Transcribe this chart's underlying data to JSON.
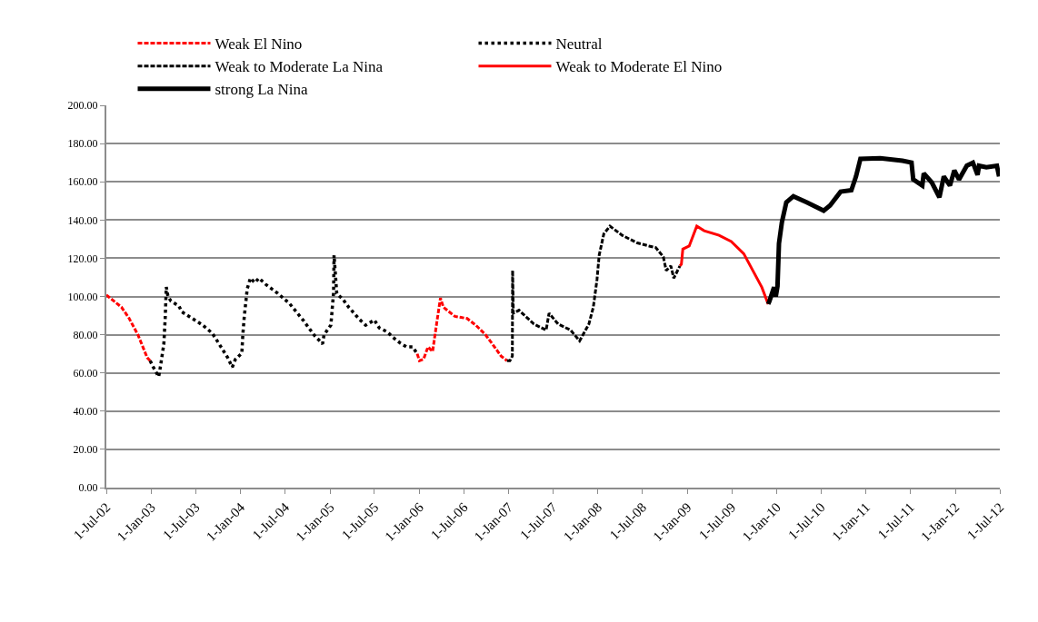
{
  "chart_data": {
    "type": "line",
    "xlim": [
      "2002-07-01",
      "2012-07-01"
    ],
    "xticks": [
      {
        "value": "2002-07-01",
        "label": "1-Jul-02"
      },
      {
        "value": "2003-01-01",
        "label": "1-Jan-03"
      },
      {
        "value": "2003-07-01",
        "label": "1-Jul-03"
      },
      {
        "value": "2004-01-01",
        "label": "1-Jan-04"
      },
      {
        "value": "2004-07-01",
        "label": "1-Jul-04"
      },
      {
        "value": "2005-01-01",
        "label": "1-Jan-05"
      },
      {
        "value": "2005-07-01",
        "label": "1-Jul-05"
      },
      {
        "value": "2006-01-01",
        "label": "1-Jan-06"
      },
      {
        "value": "2006-07-01",
        "label": "1-Jul-06"
      },
      {
        "value": "2007-01-01",
        "label": "1-Jan-07"
      },
      {
        "value": "2007-07-01",
        "label": "1-Jul-07"
      },
      {
        "value": "2008-01-01",
        "label": "1-Jan-08"
      },
      {
        "value": "2008-07-01",
        "label": "1-Jul-08"
      },
      {
        "value": "2009-01-01",
        "label": "1-Jan-09"
      },
      {
        "value": "2009-07-01",
        "label": "1-Jul-09"
      },
      {
        "value": "2010-01-01",
        "label": "1-Jan-10"
      },
      {
        "value": "2010-07-01",
        "label": "1-Jul-10"
      },
      {
        "value": "2011-01-01",
        "label": "1-Jan-11"
      },
      {
        "value": "2011-07-01",
        "label": "1-Jul-11"
      },
      {
        "value": "2012-01-01",
        "label": "1-Jan-12"
      },
      {
        "value": "2012-07-01",
        "label": "1-Jul-12"
      }
    ],
    "ylim": [
      0,
      200
    ],
    "yticks": [
      {
        "value": 0,
        "label": "0.00"
      },
      {
        "value": 20,
        "label": "20.00"
      },
      {
        "value": 40,
        "label": "40.00"
      },
      {
        "value": 60,
        "label": "60.00"
      },
      {
        "value": 80,
        "label": "80.00"
      },
      {
        "value": 100,
        "label": "100.00"
      },
      {
        "value": 120,
        "label": "120.00"
      },
      {
        "value": 140,
        "label": "140.00"
      },
      {
        "value": 160,
        "label": "160.00"
      },
      {
        "value": 180,
        "label": "180.00"
      },
      {
        "value": 200,
        "label": "200.00"
      }
    ],
    "grid": "y",
    "legend": "top",
    "marker": "none",
    "series": [
      {
        "name": "Weak El Nino",
        "color": "#ff0000",
        "line_style": "dashed",
        "x": [
          "2002-07-01",
          "2002-09-01",
          "2002-10-01",
          "2002-11-07",
          "2002-12-15",
          "2002-12-27",
          "2004-06-01",
          "2005-12-23",
          "2006-01-01",
          "2006-01-18",
          "2006-02-05",
          "2006-02-24",
          "2006-03-13",
          "2006-03-28",
          "2006-04-09",
          "2006-05-26",
          "2006-07-15",
          "2006-08-21",
          "2006-09-28",
          "2006-11-04",
          "2006-12-01",
          "2006-12-25"
        ],
        "values": [
          100.8,
          94.4,
          88.8,
          80,
          68,
          66.4,
          null,
          70,
          66.4,
          67.2,
          73.6,
          71.2,
          86.4,
          99.2,
          94.4,
          89.6,
          88.5,
          84.8,
          80,
          73.6,
          68.8,
          66.4
        ]
      },
      {
        "name": "Neutral",
        "color": "#000000",
        "line_style": "dotted",
        "x": [
          "2002-12-27",
          "2003-01-09",
          "2003-01-31",
          "2003-02-06",
          "2003-02-21",
          "2003-02-27",
          "2003-03-03",
          "2003-03-10",
          "2003-03-22",
          "2003-04-24",
          "2003-05-05",
          "2003-07-06",
          "2003-08-01",
          "2003-09-07",
          "2003-10-01",
          "2003-11-09",
          "2003-11-28",
          "2003-12-10",
          "2004-01-06",
          "2004-01-10",
          "2004-01-16",
          "2004-01-28",
          "2004-02-10",
          "2004-02-28",
          "2004-03-16",
          "2004-04-12",
          "2004-06-01",
          "2004-07-19",
          "2004-09-15",
          "2004-10-28",
          "2004-12-01",
          "2004-12-07",
          "2005-01-04",
          "2005-01-15",
          "2005-01-17",
          "2005-01-28",
          "2005-02-23",
          "2005-03-18",
          "2005-05-01",
          "2005-05-26",
          "2005-07-01",
          "2005-07-21",
          "2005-08-21",
          "2005-09-21",
          "2005-10-16",
          "2005-11-10",
          "2005-12-04",
          "2005-12-23"
        ],
        "values": [
          66.4,
          63,
          58,
          62.4,
          75,
          89.6,
          105,
          100,
          97.6,
          95,
          92,
          87,
          84.8,
          80.8,
          76,
          68,
          63,
          67,
          70.4,
          80,
          89.6,
          104,
          109.6,
          107.2,
          109.6,
          106.4,
          101.6,
          96.3,
          87.2,
          79.7,
          75.2,
          80,
          85,
          102,
          121.6,
          101.6,
          98.4,
          94.4,
          88,
          85,
          87.7,
          83.5,
          81.6,
          78,
          75.5,
          73.6,
          73.6,
          70
        ]
      },
      {
        "name": "Weak to Moderate La Nina",
        "color": "#000000",
        "line_style": "dashed",
        "x": [
          "2006-12-25",
          "2007-01-06",
          "2007-01-16",
          "2007-01-17",
          "2007-01-20",
          "2007-02-12",
          "2007-04-14",
          "2007-06-03",
          "2007-06-15",
          "2007-07-22",
          "2007-09-11",
          "2007-10-18",
          "2007-11-25",
          "2007-12-13",
          "2007-12-28",
          "2008-01-06",
          "2008-01-25",
          "2008-02-19",
          "2008-04-09",
          "2008-06-10",
          "2008-07-28",
          "2008-08-24",
          "2008-09-24",
          "2008-10-06",
          "2008-10-25",
          "2008-11-06",
          "2008-12-01"
        ],
        "values": [
          66.4,
          66.4,
          68.8,
          113.6,
          91.2,
          92.8,
          85.6,
          82.4,
          91.2,
          85.6,
          82.4,
          76.8,
          85.6,
          94.4,
          108.8,
          121.6,
          132.8,
          136.8,
          132,
          128,
          126.4,
          125.6,
          120.8,
          113.6,
          116,
          109.6,
          116
        ]
      },
      {
        "name": "Weak to Moderate El Nino",
        "color": "#ff0000",
        "line_style": "solid",
        "x": [
          "2008-12-01",
          "2008-12-07",
          "2008-12-13",
          "2009-01-08",
          "2009-02-08",
          "2009-03-10",
          "2009-05-10",
          "2009-06-29",
          "2009-08-19",
          "2009-09-25",
          "2009-11-01",
          "2009-11-27"
        ],
        "values": [
          116,
          116.8,
          124.8,
          126.4,
          136.8,
          134.4,
          132,
          128.8,
          122.4,
          113.6,
          104.8,
          96
        ]
      },
      {
        "name": "strong La Nina",
        "color": "#000000",
        "line_style": "solid",
        "x": [
          "2009-11-27",
          "2009-12-02",
          "2009-12-21",
          "2009-12-28",
          "2010-01-04",
          "2010-01-10",
          "2010-01-22",
          "2010-02-09",
          "2010-03-10",
          "2010-05-05",
          "2010-07-12",
          "2010-08-07",
          "2010-09-19",
          "2010-11-02",
          "2010-11-21",
          "2010-12-09",
          "2011-02-28",
          "2011-05-30",
          "2011-07-06",
          "2011-07-13",
          "2011-08-19",
          "2011-08-25",
          "2011-09-27",
          "2011-10-28",
          "2011-11-15",
          "2011-12-10",
          "2011-12-28",
          "2012-01-16",
          "2012-02-17",
          "2012-03-13",
          "2012-04-01",
          "2012-04-07",
          "2012-05-07",
          "2012-06-19",
          "2012-06-28"
        ],
        "values": [
          96,
          97.6,
          104.8,
          100,
          105.4,
          127.7,
          138.9,
          149.2,
          152.4,
          149.2,
          144.9,
          147.6,
          154.8,
          155.6,
          162.8,
          172,
          172.3,
          171,
          170,
          161.2,
          158,
          164.4,
          159.6,
          151.9,
          162.8,
          158,
          166,
          161.2,
          168.4,
          170,
          163.6,
          168.4,
          167.6,
          168.4,
          162.8
        ]
      }
    ]
  }
}
